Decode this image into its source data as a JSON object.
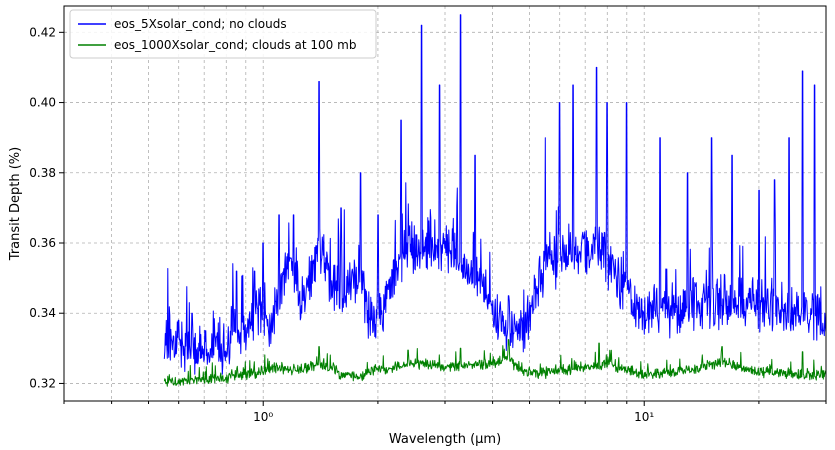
{
  "chart_data": {
    "type": "line",
    "title": "",
    "xlabel": "Wavelength (μm)",
    "ylabel": "Transit Depth (%)",
    "xscale": "log",
    "xlim": [
      0.3,
      30
    ],
    "ylim": [
      0.315,
      0.4275
    ],
    "xticks": [
      {
        "value": 1,
        "label": "10⁰"
      },
      {
        "value": 10,
        "label": "10¹"
      }
    ],
    "yticks": [
      0.32,
      0.34,
      0.36,
      0.38,
      0.4,
      0.42
    ],
    "ytick_labels": [
      "0.32",
      "0.34",
      "0.36",
      "0.38",
      "0.40",
      "0.42"
    ],
    "grid": true,
    "legend_position": "top-left",
    "series": [
      {
        "name": "eos_5Xsolar_cond; no clouds",
        "color": "#0000ff",
        "x": [
          0.55,
          0.6,
          0.65,
          0.7,
          0.75,
          0.8,
          0.85,
          0.9,
          0.95,
          1.0,
          1.05,
          1.1,
          1.15,
          1.2,
          1.25,
          1.3,
          1.35,
          1.4,
          1.45,
          1.5,
          1.6,
          1.7,
          1.8,
          1.9,
          2.0,
          2.2,
          2.4,
          2.6,
          2.8,
          3.0,
          3.2,
          3.4,
          3.6,
          3.8,
          4.0,
          4.2,
          4.4,
          4.6,
          4.8,
          5.0,
          5.5,
          6.0,
          6.5,
          7.0,
          7.5,
          8.0,
          8.5,
          9.0,
          10,
          11,
          12,
          13,
          14,
          15,
          16,
          18,
          20,
          22,
          24,
          26,
          28,
          30
        ],
        "y": [
          0.332,
          0.331,
          0.33,
          0.328,
          0.33,
          0.329,
          0.336,
          0.333,
          0.338,
          0.34,
          0.336,
          0.345,
          0.352,
          0.355,
          0.343,
          0.345,
          0.352,
          0.36,
          0.355,
          0.345,
          0.345,
          0.348,
          0.35,
          0.338,
          0.338,
          0.35,
          0.358,
          0.358,
          0.36,
          0.356,
          0.355,
          0.352,
          0.35,
          0.345,
          0.34,
          0.336,
          0.334,
          0.333,
          0.334,
          0.338,
          0.354,
          0.355,
          0.358,
          0.356,
          0.36,
          0.355,
          0.35,
          0.345,
          0.34,
          0.34,
          0.34,
          0.342,
          0.342,
          0.343,
          0.342,
          0.342,
          0.342,
          0.342,
          0.34,
          0.34,
          0.34,
          0.339
        ],
        "peaks": [
          [
            0.6,
            0.338
          ],
          [
            0.65,
            0.34
          ],
          [
            0.85,
            0.352
          ],
          [
            0.95,
            0.352
          ],
          [
            1.0,
            0.36
          ],
          [
            1.1,
            0.368
          ],
          [
            1.2,
            0.368
          ],
          [
            1.4,
            0.406
          ],
          [
            1.6,
            0.37
          ],
          [
            1.8,
            0.38
          ],
          [
            2.0,
            0.368
          ],
          [
            2.3,
            0.395
          ],
          [
            2.6,
            0.422
          ],
          [
            2.9,
            0.405
          ],
          [
            3.3,
            0.425
          ],
          [
            3.6,
            0.385
          ],
          [
            4.4,
            0.345
          ],
          [
            5.5,
            0.39
          ],
          [
            6.0,
            0.4
          ],
          [
            6.5,
            0.405
          ],
          [
            7.5,
            0.41
          ],
          [
            8.0,
            0.4
          ],
          [
            9.0,
            0.4
          ],
          [
            11,
            0.39
          ],
          [
            13,
            0.38
          ],
          [
            15,
            0.39
          ],
          [
            17,
            0.385
          ],
          [
            20,
            0.375
          ],
          [
            22,
            0.378
          ],
          [
            24,
            0.39
          ],
          [
            26,
            0.409
          ],
          [
            28,
            0.405
          ]
        ],
        "noise": 0.012
      },
      {
        "name": "eos_1000Xsolar_cond; clouds at 100 mb",
        "color": "#008000",
        "x": [
          0.55,
          0.6,
          0.7,
          0.8,
          0.9,
          1.0,
          1.1,
          1.2,
          1.3,
          1.4,
          1.5,
          1.6,
          1.8,
          2.0,
          2.2,
          2.4,
          2.6,
          2.8,
          3.0,
          3.2,
          3.5,
          4.0,
          4.4,
          4.6,
          4.8,
          5.0,
          6.0,
          7.0,
          8.0,
          9.0,
          10,
          12,
          14,
          16,
          18,
          20,
          25,
          30
        ],
        "y": [
          0.3205,
          0.3205,
          0.321,
          0.3215,
          0.3225,
          0.323,
          0.3245,
          0.3235,
          0.3245,
          0.3255,
          0.324,
          0.3225,
          0.322,
          0.3235,
          0.3245,
          0.3255,
          0.3255,
          0.325,
          0.3245,
          0.3245,
          0.325,
          0.3255,
          0.327,
          0.3245,
          0.3235,
          0.3225,
          0.3235,
          0.3245,
          0.3255,
          0.3235,
          0.3225,
          0.323,
          0.3245,
          0.326,
          0.3245,
          0.323,
          0.3225,
          0.322
        ],
        "peaks": [
          [
            1.4,
            0.3305
          ],
          [
            2.4,
            0.3295
          ],
          [
            3.3,
            0.33
          ],
          [
            4.4,
            0.3325
          ],
          [
            7.6,
            0.3315
          ],
          [
            16,
            0.3305
          ],
          [
            26,
            0.329
          ]
        ],
        "noise": 0.0025
      }
    ]
  }
}
